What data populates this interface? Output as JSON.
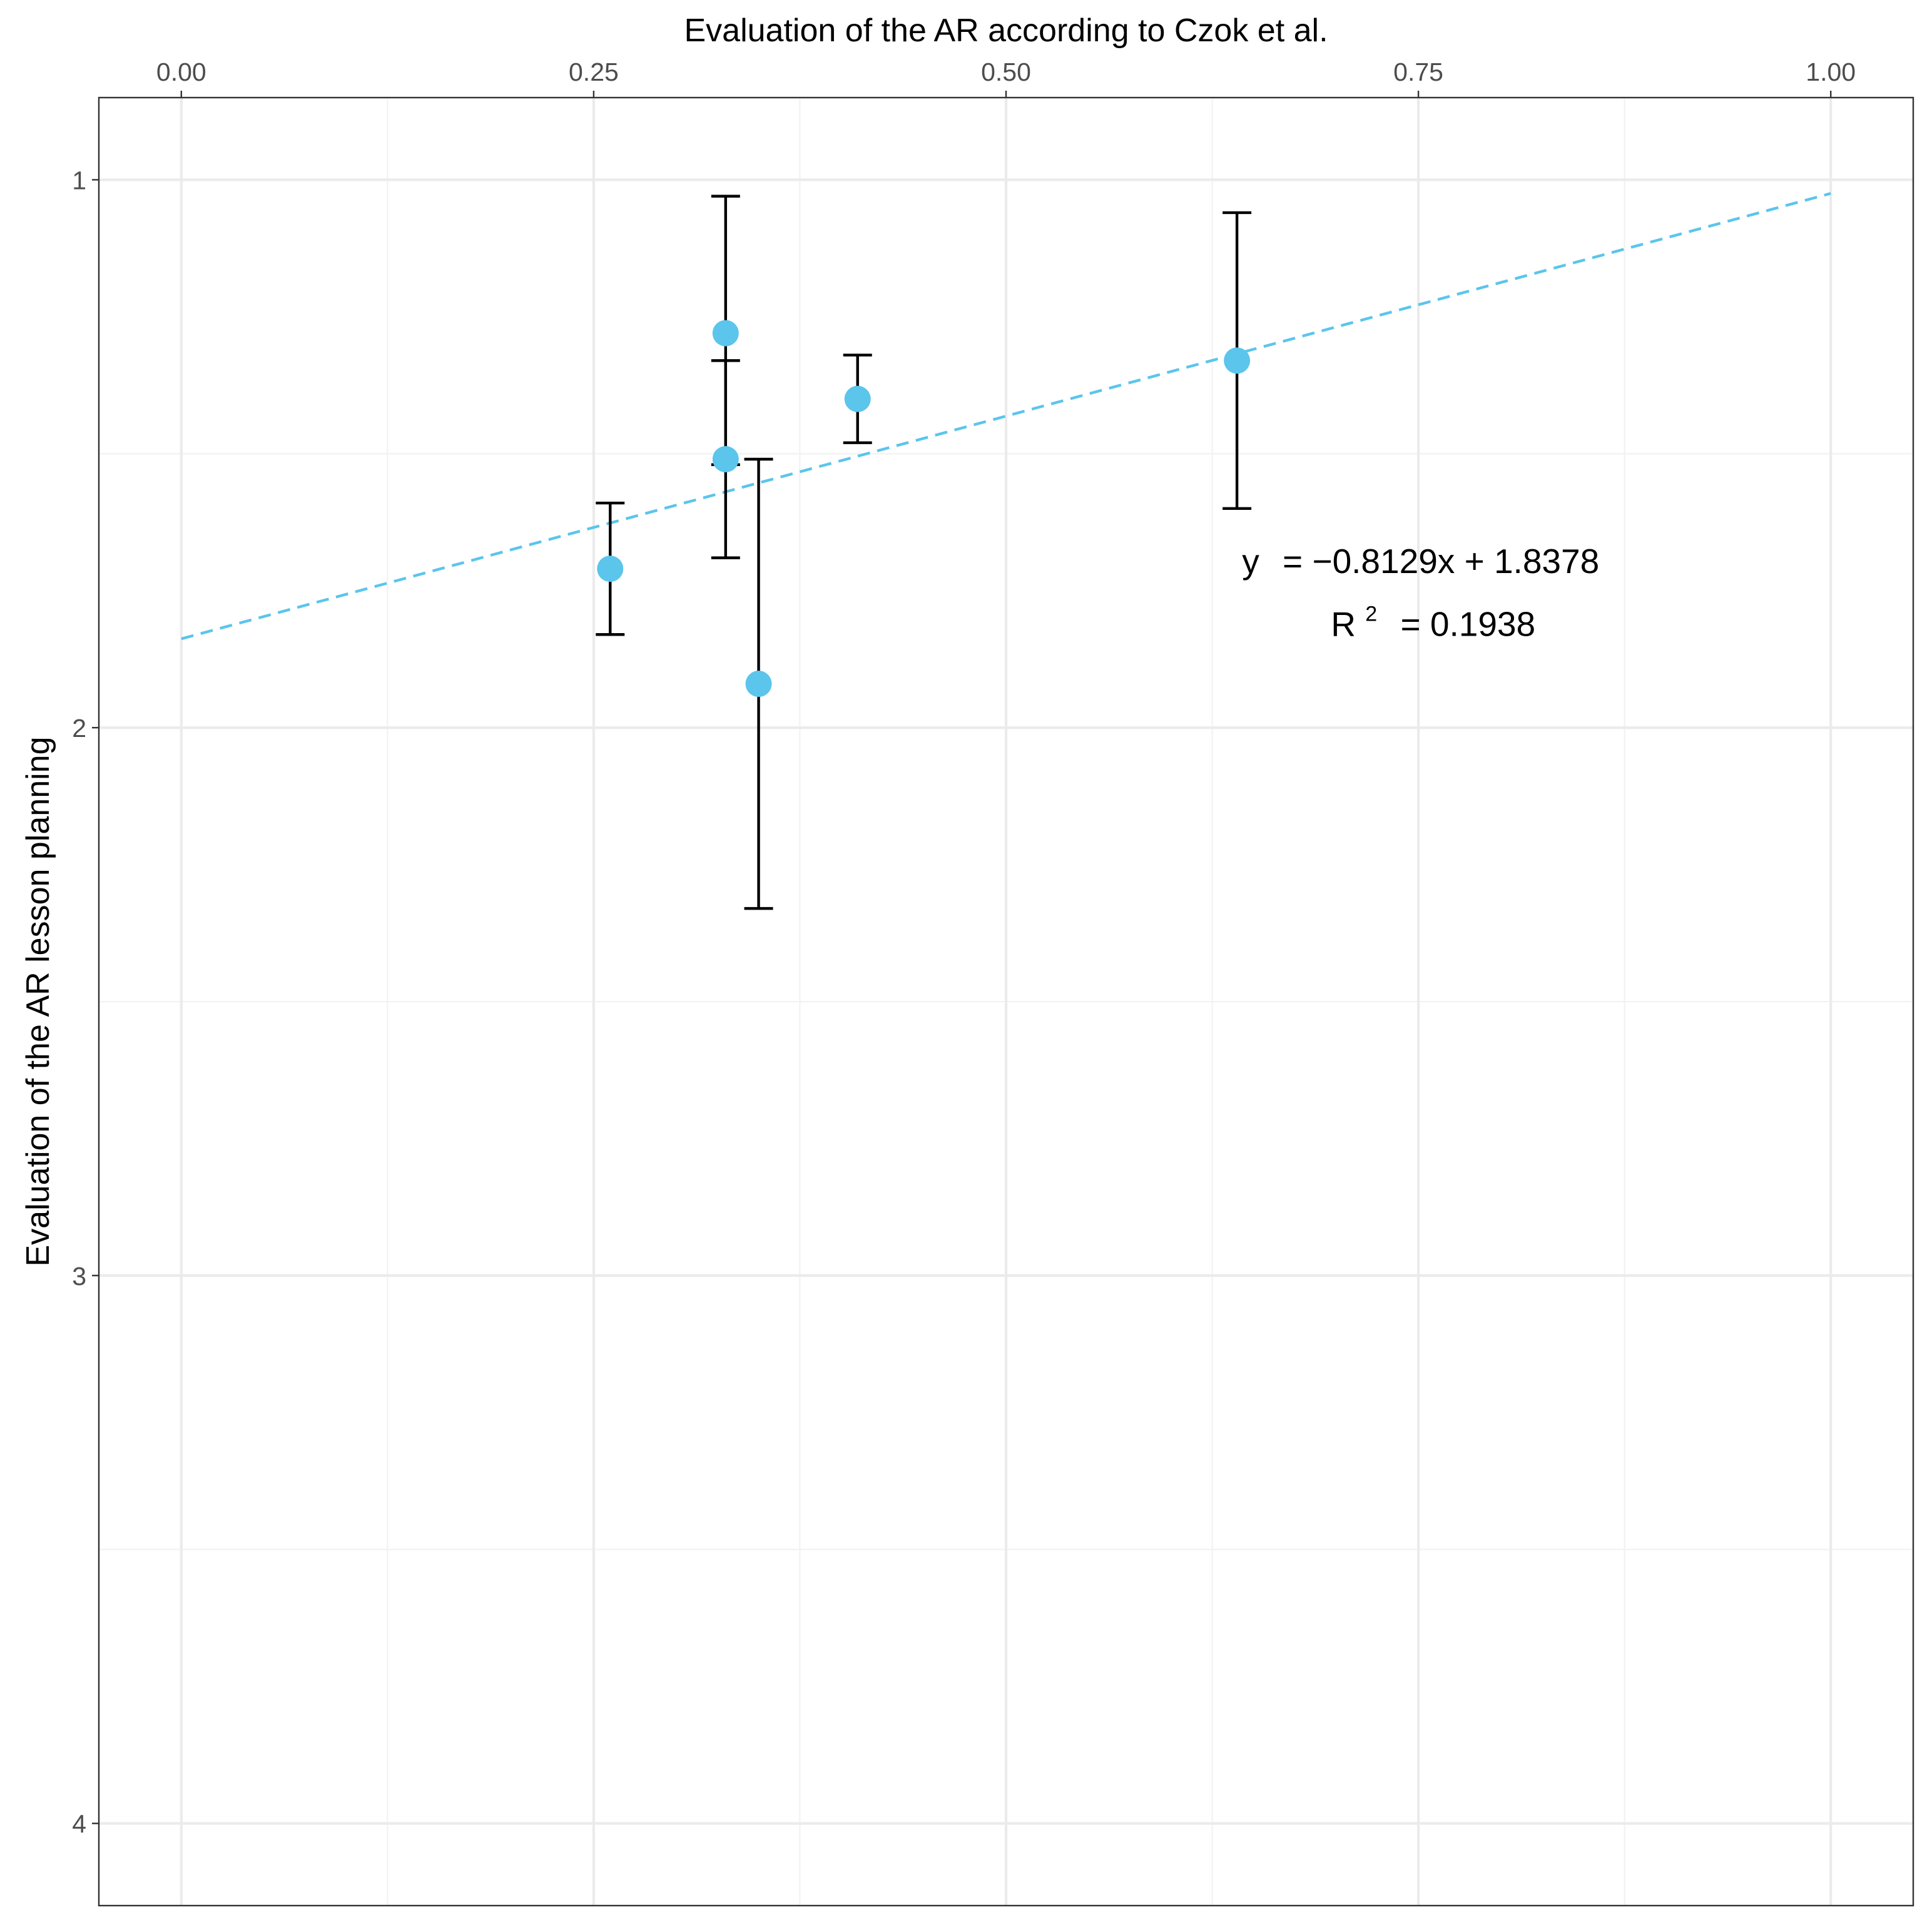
{
  "chart_data": {
    "type": "scatter",
    "title": "",
    "xlabel": "Evaluation of the AR according to Czok et al.",
    "ylabel": "Evaluation of the AR lesson planning",
    "x_axis_position": "top",
    "y_reversed": true,
    "xlim": [
      -0.05,
      1.05
    ],
    "ylim": [
      0.85,
      4.15
    ],
    "x_ticks": [
      0,
      0.25,
      0.5,
      0.75,
      1
    ],
    "x_tick_labels": [
      "0.00",
      "0.25",
      "0.50",
      "0.75",
      "1.00"
    ],
    "y_ticks": [
      1,
      2,
      3,
      4
    ],
    "y_tick_labels": [
      "1",
      "2",
      "3",
      "4"
    ],
    "grid": true,
    "points": [
      {
        "x": 0.26,
        "y": 1.71,
        "y_low": 1.59,
        "y_high": 1.83
      },
      {
        "x": 0.33,
        "y": 1.28,
        "y_low": 1.03,
        "y_high": 1.52
      },
      {
        "x": 0.33,
        "y": 1.51,
        "y_low": 1.33,
        "y_high": 1.69
      },
      {
        "x": 0.35,
        "y": 1.92,
        "y_low": 1.51,
        "y_high": 2.33
      },
      {
        "x": 0.41,
        "y": 1.4,
        "y_low": 1.32,
        "y_high": 1.48
      },
      {
        "x": 0.64,
        "y": 1.33,
        "y_low": 1.06,
        "y_high": 1.6
      }
    ],
    "fit": {
      "slope": -0.8129,
      "intercept": 1.8378,
      "x_range": [
        0,
        1
      ]
    },
    "annotation": {
      "equation_y": "y",
      "equation_rest": "= −0.8129x + 1.8378",
      "r2_base": "R",
      "r2_sup": "2",
      "r2_rest": "= 0.1938",
      "position_x": 0.7,
      "equation_y_value": 1.695,
      "r2_y_value": 1.81
    },
    "colors": {
      "point": "#5bc5ec",
      "fit_line": "#5bc5ec",
      "errorbar": "#000000"
    }
  }
}
